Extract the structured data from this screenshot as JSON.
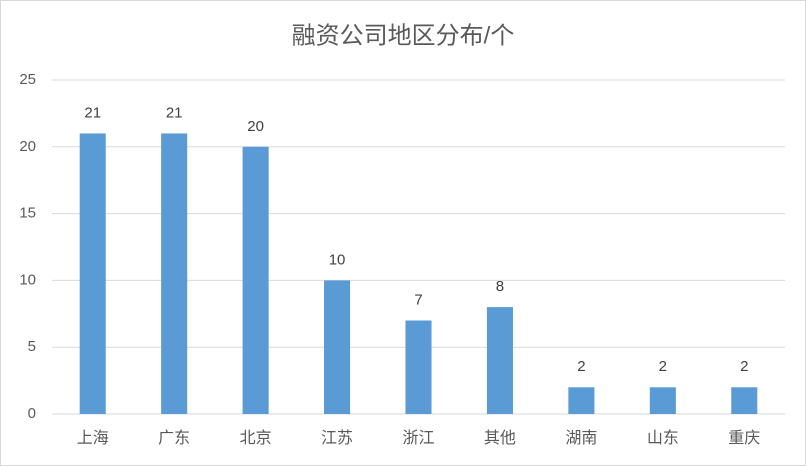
{
  "chart_data": {
    "type": "bar",
    "title": "融资公司地区分布/个",
    "categories": [
      "上海",
      "广东",
      "北京",
      "江苏",
      "浙江",
      "其他",
      "湖南",
      "山东",
      "重庆"
    ],
    "values": [
      21,
      21,
      20,
      10,
      7,
      8,
      2,
      2,
      2
    ],
    "color": "#5b9bd5",
    "ylim": [
      0,
      25
    ],
    "yticks": [
      0,
      5,
      10,
      15,
      20,
      25
    ],
    "grid": true,
    "data_labels": true
  }
}
